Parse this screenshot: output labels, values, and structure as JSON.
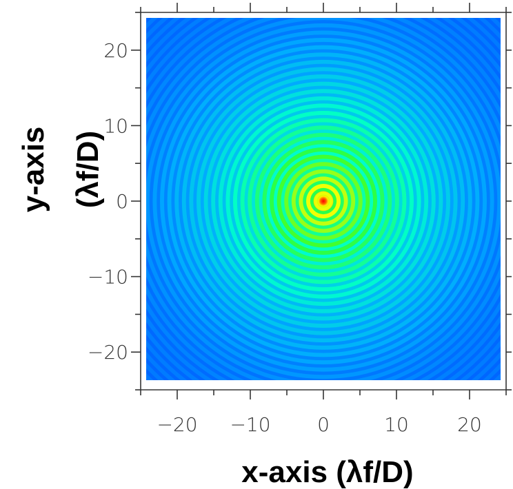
{
  "chart_data": {
    "type": "heatmap",
    "description_of_values": "Airy diffraction pattern intensity, peak at origin",
    "xlabel": "x-axis (λf/D)",
    "ylabel_line1": "y-axis",
    "ylabel_line2": "(λf/D)",
    "xlim": [
      -25,
      25
    ],
    "ylim": [
      -25,
      25
    ],
    "xticks_major": [
      -20,
      -10,
      0,
      10,
      20
    ],
    "yticks_major": [
      -20,
      -10,
      0,
      10,
      20
    ],
    "xtick_labels": [
      "−20",
      "−10",
      "0",
      "10",
      "20"
    ],
    "ytick_labels": [
      "−20",
      "−10",
      "0",
      "10",
      "20"
    ],
    "ticks_minor_step": 5,
    "grid": false,
    "colorscale": [
      "#0033ff",
      "#00aaff",
      "#00ffcc",
      "#33ff33",
      "#ffff00",
      "#ff0000"
    ],
    "peak": {
      "x": 0,
      "y": 0
    },
    "ring_spacing": 1.0,
    "center_dark_ring_radius": 1.22
  }
}
